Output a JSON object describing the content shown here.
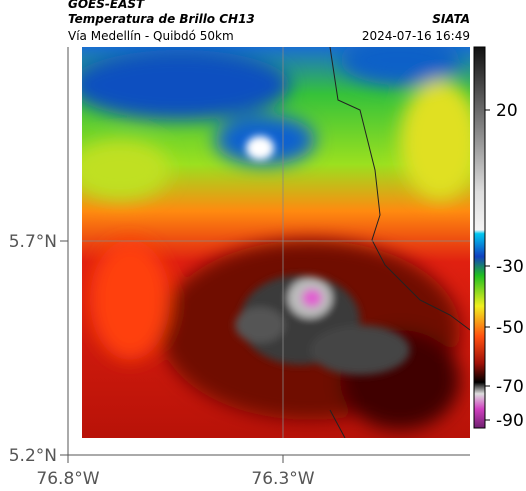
{
  "header": {
    "satellite": "GOES-EAST",
    "product": "Temperatura de Brillo CH13",
    "route": "Vía Medellín - Quibdó 50km",
    "source": "SIATA",
    "datetime": "2024-07-16 16:49"
  },
  "map": {
    "lat_labels": [
      "5.7°N",
      "5.2°N"
    ],
    "lon_labels": [
      "76.8°W",
      "76.3°W"
    ]
  },
  "colorbar": {
    "ticks": [
      20,
      -30,
      -50,
      -70,
      -90
    ]
  }
}
